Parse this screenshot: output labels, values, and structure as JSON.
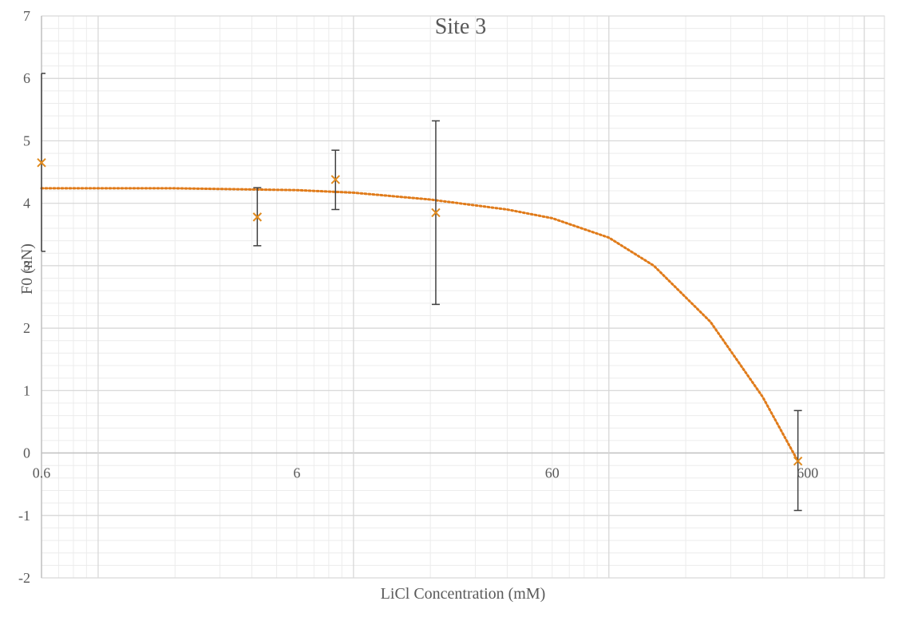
{
  "chart_data": {
    "type": "scatter",
    "title": "Site 3",
    "xlabel": "LiCl Concentration (mM)",
    "ylabel": "F0 (nN)",
    "x_scale": "log",
    "xlim": [
      0.6,
      1200
    ],
    "ylim": [
      -2,
      7
    ],
    "x_ticks": [
      0.6,
      6,
      60,
      600
    ],
    "x_tick_labels": [
      "0.6",
      "6",
      "60",
      "600"
    ],
    "y_ticks": [
      -2,
      -1,
      0,
      1,
      2,
      3,
      4,
      5,
      6,
      7
    ],
    "y_tick_labels": [
      "-2",
      "-1",
      "0",
      "1",
      "2",
      "3",
      "4",
      "5",
      "6",
      "7"
    ],
    "grid": true,
    "series": [
      {
        "marker": "x",
        "color": "#E08A1E",
        "points": [
          {
            "x": 0.6,
            "y": 4.65,
            "err_low": 3.23,
            "err_high": 6.08
          },
          {
            "x": 4.2,
            "y": 3.78,
            "err_low": 3.32,
            "err_high": 4.25
          },
          {
            "x": 8.5,
            "y": 4.38,
            "err_low": 3.9,
            "err_high": 4.85
          },
          {
            "x": 21,
            "y": 3.85,
            "err_low": 2.38,
            "err_high": 5.32
          },
          {
            "x": 550,
            "y": -0.13,
            "err_low": -0.92,
            "err_high": 0.68
          }
        ]
      }
    ],
    "trendline": {
      "style": "dotted",
      "color": "#E07B1A",
      "points": [
        {
          "x": 0.6,
          "y": 4.24
        },
        {
          "x": 2,
          "y": 4.24
        },
        {
          "x": 6,
          "y": 4.21
        },
        {
          "x": 10,
          "y": 4.17
        },
        {
          "x": 20,
          "y": 4.06
        },
        {
          "x": 40,
          "y": 3.9
        },
        {
          "x": 60,
          "y": 3.76
        },
        {
          "x": 100,
          "y": 3.45
        },
        {
          "x": 150,
          "y": 3.0
        },
        {
          "x": 250,
          "y": 2.1
        },
        {
          "x": 400,
          "y": 0.9
        },
        {
          "x": 550,
          "y": -0.13
        }
      ]
    }
  }
}
